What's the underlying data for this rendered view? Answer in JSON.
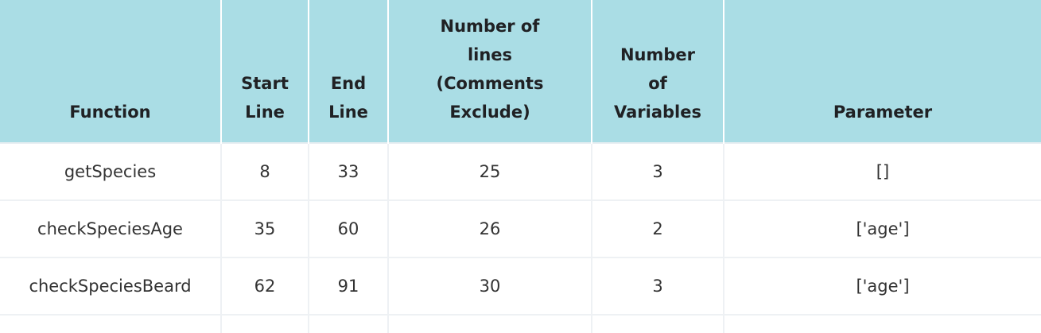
{
  "table": {
    "headers": [
      [
        "Function"
      ],
      [
        "Start",
        "Line"
      ],
      [
        "End",
        "Line"
      ],
      [
        "Number of",
        "lines",
        "(Comments",
        "Exclude)"
      ],
      [
        "Number",
        "of",
        "Variables"
      ],
      [
        "Parameter"
      ]
    ],
    "rows": [
      [
        "getSpecies",
        "8",
        "33",
        "25",
        "3",
        "[]"
      ],
      [
        "checkSpeciesAge",
        "35",
        "60",
        "26",
        "2",
        "['age']"
      ],
      [
        "checkSpeciesBeard",
        "62",
        "91",
        "30",
        "3",
        "['age']"
      ]
    ]
  },
  "colors": {
    "header_bg": "#aadde5",
    "row_border": "#eef1f4"
  }
}
